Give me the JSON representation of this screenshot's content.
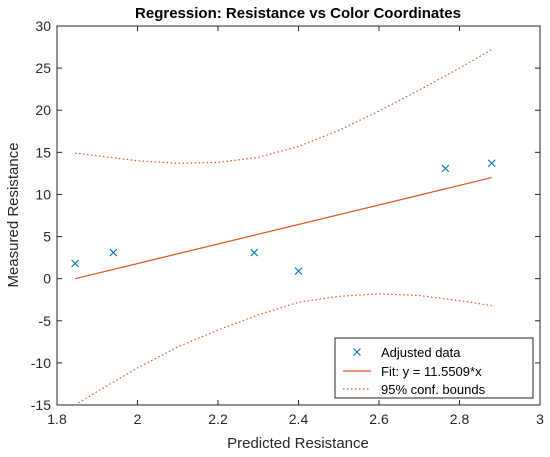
{
  "chart_data": {
    "type": "scatter",
    "title": "Regression: Resistance vs Color Coordinates",
    "xlabel": "Predicted Resistance",
    "ylabel": "Measured Resistance",
    "xlim": [
      1.8,
      3.0
    ],
    "ylim": [
      -15,
      30
    ],
    "xticks": [
      1.8,
      2.0,
      2.2,
      2.4,
      2.6,
      2.8,
      3.0
    ],
    "xtick_labels": [
      "1.8",
      "2",
      "2.2",
      "2.4",
      "2.6",
      "2.8",
      "3"
    ],
    "yticks": [
      -15,
      -10,
      -5,
      0,
      5,
      10,
      15,
      20,
      25,
      30
    ],
    "ytick_labels": [
      "-15",
      "-10",
      "-5",
      "0",
      "5",
      "10",
      "15",
      "20",
      "25",
      "30"
    ],
    "grid": false,
    "legend_position": "bottom-right",
    "series": [
      {
        "name": "Adjusted data",
        "kind": "scatter",
        "marker": "x",
        "color": "#0072BD",
        "x": [
          1.845,
          1.94,
          2.29,
          2.4,
          2.765,
          2.88
        ],
        "y": [
          1.8,
          3.1,
          3.1,
          0.9,
          13.1,
          13.7
        ]
      },
      {
        "name": "Fit: y = 11.5509*x",
        "kind": "line",
        "color": "#D95319",
        "x": [
          1.845,
          2.88
        ],
        "y": [
          0.0,
          12.0
        ]
      },
      {
        "name": "95% conf. bounds",
        "kind": "dotted-band",
        "color": "#D95319",
        "x": [
          1.845,
          1.9,
          2.0,
          2.1,
          2.2,
          2.3,
          2.4,
          2.5,
          2.6,
          2.7,
          2.8,
          2.88
        ],
        "upper": [
          14.9,
          14.6,
          14.0,
          13.7,
          13.8,
          14.4,
          15.7,
          17.6,
          19.9,
          22.4,
          25.0,
          27.2
        ],
        "lower": [
          -15.0,
          -13.4,
          -10.6,
          -8.1,
          -6.1,
          -4.3,
          -2.8,
          -2.1,
          -1.8,
          -2.0,
          -2.6,
          -3.2
        ]
      }
    ]
  },
  "colors": {
    "data": "#0072BD",
    "fit": "#D95319",
    "axis": "#262626",
    "background": "#ffffff"
  }
}
